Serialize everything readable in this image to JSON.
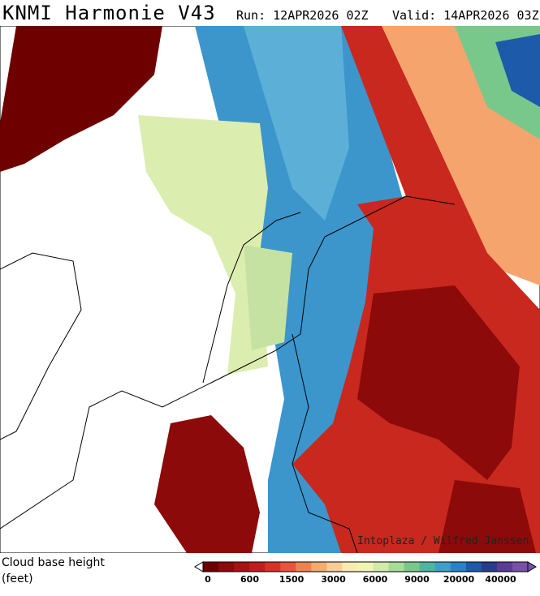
{
  "header": {
    "title": "KNMI Harmonie V43",
    "run": "Run: 12APR2026 02Z",
    "valid": "Valid: 14APR2026 03Z"
  },
  "map": {
    "credit": "Intoplaza / Wilfred Janssen"
  },
  "legend": {
    "label_line1": "Cloud base height",
    "label_line2": "(feet)",
    "colors": [
      "#6e0000",
      "#8c0a0a",
      "#a51414",
      "#be1e1e",
      "#d73228",
      "#e6553c",
      "#f08250",
      "#f5aa6e",
      "#f8cd96",
      "#faebb4",
      "#f0f5b4",
      "#d2ebaa",
      "#a5dc96",
      "#78c88c",
      "#50b4a0",
      "#3ca0c8",
      "#2882c8",
      "#1e5aaa",
      "#283c8c",
      "#5a3c96",
      "#7850aa"
    ],
    "ticks": [
      "0",
      "600",
      "1500",
      "3000",
      "6000",
      "9000",
      "20000",
      "40000"
    ]
  }
}
